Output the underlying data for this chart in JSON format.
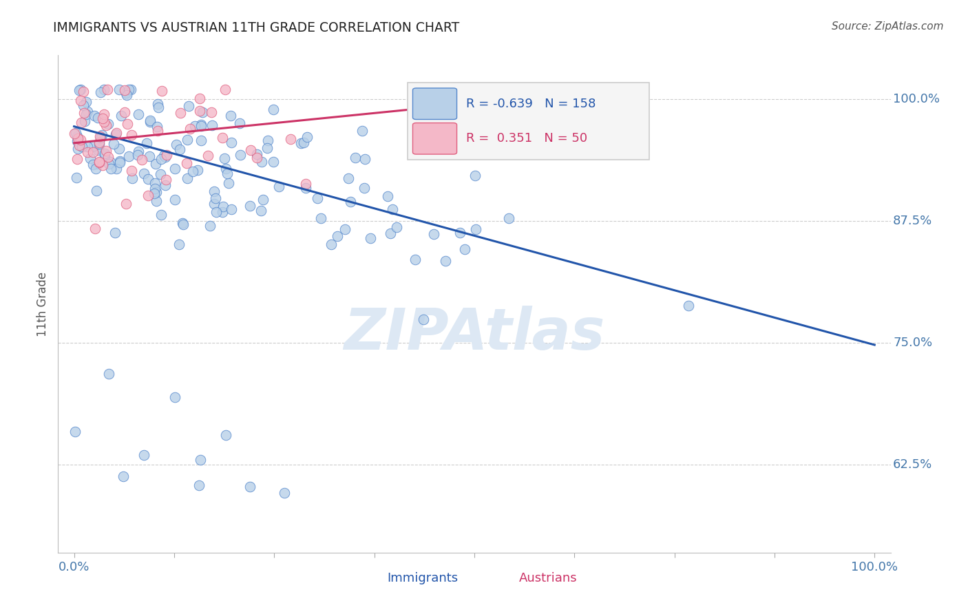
{
  "title": "IMMIGRANTS VS AUSTRIAN 11TH GRADE CORRELATION CHART",
  "source_text": "Source: ZipAtlas.com",
  "ylabel": "11th Grade",
  "xlim": [
    -0.02,
    1.02
  ],
  "ylim": [
    0.535,
    1.045
  ],
  "ytick_positions": [
    0.625,
    0.75,
    0.875,
    1.0
  ],
  "ytick_labels": [
    "62.5%",
    "75.0%",
    "87.5%",
    "100.0%"
  ],
  "xtick_positions": [
    0.0,
    0.125,
    0.25,
    0.375,
    0.5,
    0.625,
    0.75,
    0.875,
    1.0
  ],
  "xtick_labels_major": {
    "0.0": "0.0%",
    "0.5": "",
    "1.0": "100.0%"
  },
  "immigrants_R": -0.639,
  "immigrants_N": 158,
  "austrians_R": 0.351,
  "austrians_N": 50,
  "immigrants_color": "#b8d0e8",
  "immigrants_edge_color": "#5588cc",
  "immigrants_line_color": "#2255aa",
  "austrians_color": "#f4b8c8",
  "austrians_edge_color": "#e06080",
  "austrians_line_color": "#cc3366",
  "background_color": "#ffffff",
  "grid_color": "#cccccc",
  "watermark_color": "#dde8f4",
  "title_color": "#222222",
  "axis_label_color": "#4477aa",
  "source_color": "#555555",
  "ylabel_color": "#555555",
  "legend_bg": "#f5f5f5",
  "legend_border": "#cccccc",
  "imm_line_start_x": 0.0,
  "imm_line_start_y": 0.972,
  "imm_line_end_x": 1.0,
  "imm_line_end_y": 0.748,
  "aut_line_start_x": 0.0,
  "aut_line_start_y": 0.955,
  "aut_line_end_x": 0.55,
  "aut_line_end_y": 1.0,
  "seed": 12345
}
